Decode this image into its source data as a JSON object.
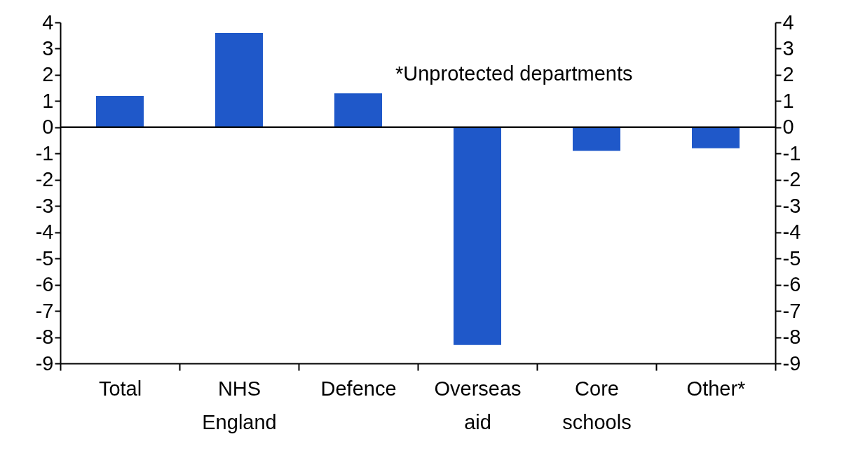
{
  "chart_data": {
    "type": "bar",
    "categories": [
      "Total",
      "NHS England",
      "Defence",
      "Overseas aid",
      "Core schools",
      "Other*"
    ],
    "values": [
      1.2,
      3.6,
      1.3,
      -8.3,
      -0.9,
      -0.8
    ],
    "color": "#1f58c9",
    "ylim": [
      -9,
      4
    ],
    "yticks": [
      -9,
      -8,
      -7,
      -6,
      -5,
      -4,
      -3,
      -2,
      -1,
      0,
      1,
      2,
      3,
      4
    ],
    "y2lim": [
      -9,
      4
    ],
    "y2ticks": [
      -9,
      -8,
      -7,
      -6,
      -5,
      -4,
      -3,
      -2,
      -1,
      0,
      1,
      2,
      3,
      4
    ],
    "annotations": [
      "*Unprotected departments"
    ]
  }
}
